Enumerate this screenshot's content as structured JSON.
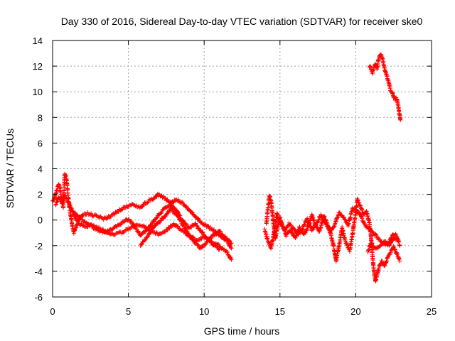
{
  "chart_data": {
    "type": "scatter",
    "title": "Day 330 of 2016, Sidereal Day-to-day VTEC variation (SDTVAR) for receiver ske0",
    "xlabel": "GPS time / hours",
    "ylabel": "SDTVAR / TECUs",
    "xlim": [
      0,
      25
    ],
    "ylim": [
      -6,
      14
    ],
    "xticks": [
      0,
      5,
      10,
      15,
      20,
      25
    ],
    "yticks": [
      -6,
      -4,
      -2,
      0,
      2,
      4,
      6,
      8,
      10,
      12,
      14
    ],
    "grid": true,
    "marker": "plus",
    "series": [
      {
        "name": "SDTVAR",
        "color": "#ff0000",
        "segments": [
          [
            [
              0.0,
              1.4
            ],
            [
              0.1,
              1.6
            ],
            [
              0.2,
              2.0
            ],
            [
              0.3,
              2.4
            ],
            [
              0.4,
              2.8
            ],
            [
              0.5,
              2.4
            ],
            [
              0.6,
              1.5
            ],
            [
              0.7,
              1.0
            ],
            [
              0.8,
              3.6
            ],
            [
              0.9,
              3.4
            ],
            [
              1.0,
              2.2
            ],
            [
              1.1,
              1.0
            ],
            [
              1.2,
              0.3
            ],
            [
              1.3,
              -0.5
            ],
            [
              1.4,
              -1.0
            ],
            [
              1.6,
              -0.4
            ],
            [
              1.8,
              0.2
            ],
            [
              2.0,
              0.4
            ],
            [
              2.3,
              0.5
            ],
            [
              2.6,
              0.4
            ],
            [
              3.0,
              0.3
            ],
            [
              3.4,
              0.1
            ],
            [
              3.8,
              0.3
            ],
            [
              4.2,
              0.6
            ],
            [
              4.6,
              0.9
            ],
            [
              5.0,
              1.1
            ],
            [
              5.4,
              1.2
            ],
            [
              5.8,
              1.0
            ],
            [
              6.2,
              1.4
            ],
            [
              6.6,
              1.6
            ],
            [
              7.0,
              2.0
            ],
            [
              7.4,
              1.7
            ],
            [
              7.8,
              1.3
            ],
            [
              8.2,
              1.6
            ],
            [
              8.6,
              1.3
            ],
            [
              9.0,
              0.8
            ],
            [
              9.4,
              0.3
            ],
            [
              9.8,
              -0.2
            ],
            [
              10.2,
              -0.5
            ],
            [
              10.6,
              -0.8
            ],
            [
              11.0,
              -1.2
            ],
            [
              11.4,
              -1.5
            ],
            [
              11.8,
              -1.8
            ]
          ],
          [
            [
              0.2,
              1.2
            ],
            [
              0.4,
              1.8
            ],
            [
              0.6,
              1.4
            ],
            [
              0.8,
              1.9
            ],
            [
              1.0,
              1.5
            ],
            [
              1.2,
              1.0
            ],
            [
              1.4,
              0.4
            ],
            [
              1.6,
              0.0
            ],
            [
              1.8,
              -0.3
            ],
            [
              2.1,
              -0.5
            ],
            [
              2.5,
              -0.4
            ],
            [
              3.0,
              -0.6
            ],
            [
              3.5,
              -0.9
            ],
            [
              4.0,
              -1.1
            ],
            [
              4.5,
              -1.0
            ],
            [
              5.0,
              -0.7
            ],
            [
              5.5,
              -0.4
            ],
            [
              6.0,
              -0.5
            ],
            [
              6.5,
              -0.9
            ],
            [
              7.0,
              -1.1
            ],
            [
              7.5,
              -0.8
            ],
            [
              8.0,
              -0.3
            ],
            [
              8.5,
              -0.8
            ],
            [
              9.0,
              -1.2
            ],
            [
              9.5,
              -1.6
            ],
            [
              10.0,
              -1.3
            ],
            [
              10.5,
              -1.7
            ],
            [
              11.0,
              -2.0
            ],
            [
              11.5,
              -2.5
            ],
            [
              11.8,
              -3.1
            ]
          ],
          [
            [
              1.4,
              0.6
            ],
            [
              1.8,
              0.2
            ],
            [
              2.2,
              -0.2
            ],
            [
              2.6,
              -0.5
            ],
            [
              3.0,
              -0.8
            ],
            [
              3.4,
              -1.0
            ],
            [
              3.8,
              -0.8
            ],
            [
              4.2,
              -0.5
            ],
            [
              4.6,
              -0.2
            ],
            [
              5.0,
              0.1
            ],
            [
              5.4,
              -0.5
            ],
            [
              5.8,
              -1.2
            ],
            [
              6.2,
              -0.8
            ],
            [
              6.6,
              -0.2
            ],
            [
              7.0,
              0.4
            ],
            [
              7.4,
              0.9
            ],
            [
              7.8,
              1.2
            ],
            [
              8.2,
              0.7
            ],
            [
              8.6,
              -0.1
            ],
            [
              9.0,
              -0.6
            ],
            [
              9.4,
              -0.3
            ],
            [
              9.8,
              -0.9
            ],
            [
              10.2,
              -1.4
            ],
            [
              10.6,
              -1.9
            ],
            [
              11.0,
              -2.3
            ]
          ],
          [
            [
              5.8,
              -2.0
            ],
            [
              6.0,
              -1.6
            ],
            [
              6.3,
              -1.2
            ],
            [
              6.6,
              -0.6
            ],
            [
              7.0,
              -0.2
            ],
            [
              7.4,
              0.3
            ],
            [
              7.8,
              0.8
            ],
            [
              8.2,
              0.4
            ],
            [
              8.6,
              -0.4
            ],
            [
              9.0,
              -1.2
            ],
            [
              9.4,
              -1.8
            ],
            [
              9.8,
              -2.2
            ],
            [
              10.2,
              -1.7
            ],
            [
              10.6,
              -1.2
            ],
            [
              11.0,
              -0.9
            ],
            [
              11.4,
              -1.4
            ],
            [
              11.8,
              -2.2
            ]
          ],
          [
            [
              14.1,
              -0.3
            ],
            [
              14.2,
              0.8
            ],
            [
              14.3,
              1.9
            ],
            [
              14.4,
              1.6
            ],
            [
              14.5,
              0.6
            ],
            [
              14.6,
              -0.6
            ],
            [
              14.7,
              -1.5
            ],
            [
              14.8,
              -0.7
            ],
            [
              15.0,
              0.2
            ],
            [
              15.2,
              -0.5
            ],
            [
              15.4,
              -1.2
            ],
            [
              15.7,
              -0.8
            ],
            [
              16.0,
              -1.4
            ],
            [
              16.3,
              -0.6
            ],
            [
              16.6,
              -1.1
            ],
            [
              16.9,
              -0.4
            ],
            [
              17.1,
              0.4
            ],
            [
              17.3,
              -0.3
            ],
            [
              17.6,
              -0.9
            ],
            [
              17.9,
              0.3
            ],
            [
              18.2,
              -0.5
            ],
            [
              18.5,
              -1.8
            ],
            [
              18.7,
              -3.2
            ],
            [
              18.9,
              -2.0
            ],
            [
              19.1,
              -0.6
            ],
            [
              19.3,
              -1.6
            ],
            [
              19.6,
              -2.4
            ],
            [
              19.8,
              -1.0
            ],
            [
              20.0,
              0.6
            ],
            [
              20.1,
              1.6
            ],
            [
              20.3,
              1.1
            ],
            [
              20.5,
              0.4
            ],
            [
              20.7,
              0.7
            ],
            [
              20.9,
              -0.2
            ],
            [
              21.0,
              -1.2
            ],
            [
              21.1,
              -2.8
            ],
            [
              21.2,
              -4.0
            ],
            [
              21.3,
              -4.8
            ],
            [
              21.5,
              -3.8
            ],
            [
              21.7,
              -3.2
            ],
            [
              21.9,
              -3.6
            ],
            [
              22.1,
              -2.9
            ],
            [
              22.3,
              -2.5
            ],
            [
              22.5,
              -2.1
            ],
            [
              22.7,
              -2.6
            ],
            [
              22.9,
              -3.2
            ]
          ],
          [
            [
              14.0,
              -0.8
            ],
            [
              14.2,
              -1.6
            ],
            [
              14.4,
              -2.2
            ],
            [
              14.6,
              -1.0
            ],
            [
              14.8,
              0.5
            ],
            [
              15.0,
              -0.2
            ],
            [
              15.3,
              -0.8
            ],
            [
              15.6,
              -0.3
            ],
            [
              15.9,
              -0.7
            ],
            [
              16.2,
              -1.2
            ],
            [
              16.5,
              -0.6
            ],
            [
              16.8,
              0.1
            ],
            [
              17.1,
              -0.8
            ],
            [
              17.4,
              -0.3
            ],
            [
              17.7,
              0.4
            ],
            [
              18.0,
              -0.2
            ],
            [
              18.3,
              -0.9
            ],
            [
              18.6,
              -0.4
            ],
            [
              18.9,
              0.6
            ],
            [
              19.2,
              0.2
            ],
            [
              19.5,
              -0.4
            ],
            [
              19.8,
              0.9
            ],
            [
              20.2,
              0.6
            ],
            [
              20.6,
              -0.4
            ],
            [
              21.0,
              -0.8
            ],
            [
              21.4,
              -1.3
            ],
            [
              21.8,
              -1.8
            ],
            [
              22.2,
              -2.0
            ],
            [
              22.5,
              -1.4
            ],
            [
              22.8,
              -1.6
            ],
            [
              22.9,
              -2.0
            ]
          ],
          [
            [
              20.8,
              -2.4
            ],
            [
              21.0,
              -1.8
            ],
            [
              21.3,
              -2.2
            ],
            [
              21.6,
              -2.0
            ],
            [
              21.9,
              -1.7
            ],
            [
              22.2,
              -1.8
            ],
            [
              22.4,
              -1.2
            ],
            [
              22.6,
              -1.1
            ],
            [
              22.8,
              -1.5
            ]
          ],
          [
            [
              20.9,
              12.0
            ],
            [
              21.0,
              11.8
            ],
            [
              21.1,
              11.5
            ],
            [
              21.2,
              11.9
            ],
            [
              21.3,
              12.1
            ],
            [
              21.4,
              11.8
            ],
            [
              21.5,
              12.6
            ],
            [
              21.6,
              12.9
            ],
            [
              21.7,
              12.8
            ],
            [
              21.8,
              12.4
            ],
            [
              21.9,
              11.8
            ],
            [
              22.0,
              11.4
            ],
            [
              22.1,
              11.0
            ],
            [
              22.2,
              10.6
            ],
            [
              22.3,
              10.1
            ],
            [
              22.4,
              10.0
            ],
            [
              22.5,
              9.6
            ],
            [
              22.6,
              9.4
            ],
            [
              22.7,
              9.5
            ],
            [
              22.8,
              8.9
            ],
            [
              22.9,
              8.2
            ],
            [
              22.95,
              7.8
            ]
          ]
        ]
      }
    ]
  }
}
